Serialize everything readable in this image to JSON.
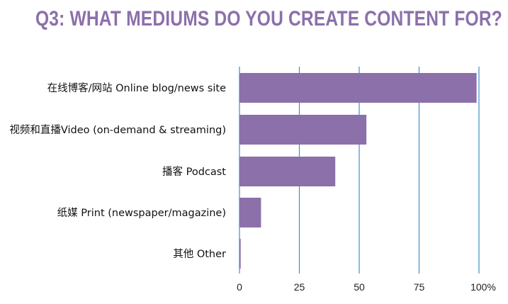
{
  "title": "Q3: WHAT MEDIUMS DO YOU CREATE CONTENT FOR?",
  "colors": {
    "bar": "#8b70aa",
    "title": "#8b70aa",
    "grid": "#3b8fd0"
  },
  "chart_data": {
    "type": "bar",
    "orientation": "horizontal",
    "categories": [
      "在线博客/网站 Online blog/news site",
      "视频和直播Video (on-demand & streaming)",
      "播客 Podcast",
      "纸媒 Print (newspaper/magazine)",
      "其他 Other"
    ],
    "values": [
      99,
      53,
      40,
      9,
      0.5
    ],
    "xlim": [
      0,
      100
    ],
    "xticks": [
      0,
      25,
      50,
      75,
      100
    ],
    "xtick_labels": [
      "0",
      "25",
      "50",
      "75",
      "100%"
    ],
    "grid": true,
    "title": "Q3: WHAT MEDIUMS DO YOU CREATE CONTENT FOR?"
  }
}
